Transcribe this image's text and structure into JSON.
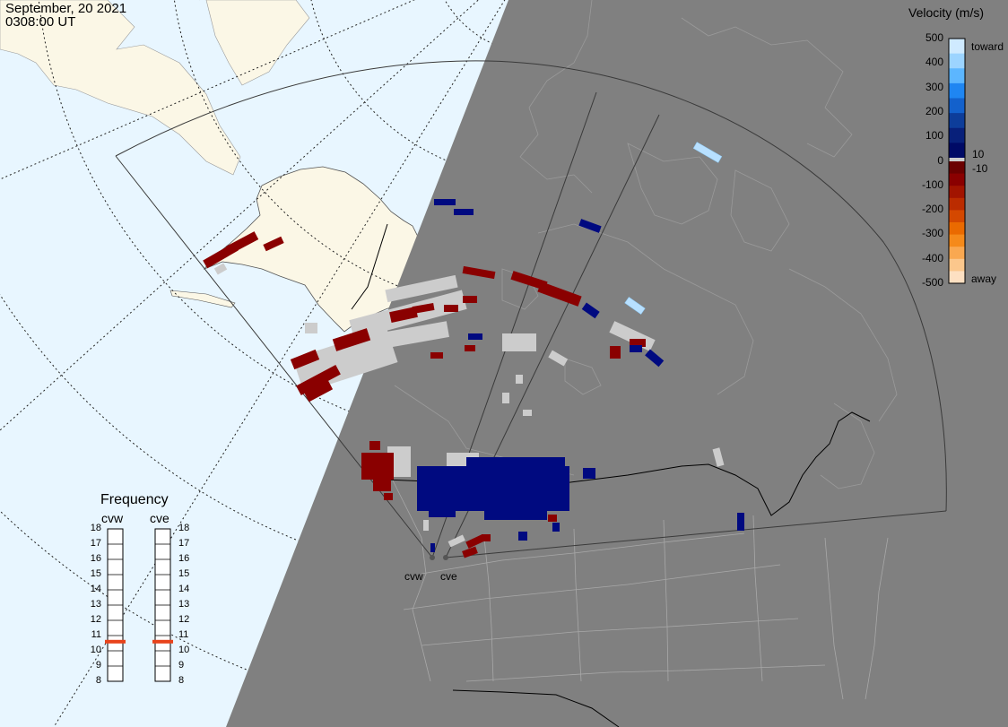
{
  "header": {
    "date": "September, 20 2021",
    "time": "0308:00 UT"
  },
  "colorbar": {
    "title": "Velocity (m/s)",
    "ticks": [
      "500",
      "400",
      "300",
      "200",
      "100",
      "0",
      "-100",
      "-200",
      "-300",
      "-400",
      "-500"
    ],
    "inner_pos": "10",
    "inner_neg": "-10",
    "label_toward": "toward",
    "label_away": "away",
    "colors_toward": [
      "#cfeaff",
      "#9cd4ff",
      "#5cb6ff",
      "#1f86f2",
      "#1361cc",
      "#0d3d9a",
      "#08207a",
      "#000a66"
    ],
    "colors_away": [
      "#6b0000",
      "#8a0000",
      "#a21400",
      "#bb2c00",
      "#d44800",
      "#ea6a00",
      "#f58a1a",
      "#f9a851",
      "#fbc78c",
      "#fde0c2"
    ]
  },
  "frequency": {
    "title": "Frequency",
    "radars": [
      {
        "name": "cvw",
        "value_mhz": 10.6
      },
      {
        "name": "cve",
        "value_mhz": 10.6
      }
    ],
    "scale": [
      "18",
      "17",
      "16",
      "15",
      "14",
      "13",
      "12",
      "11",
      "10",
      "9",
      "8"
    ]
  },
  "map": {
    "ocean_color": "#e8f6ff",
    "land_color": "#fbf7e6",
    "night_color": "#808080",
    "ground_scatter_color": "#cccccc",
    "radar_labels": [
      "cvw",
      "cve"
    ]
  }
}
